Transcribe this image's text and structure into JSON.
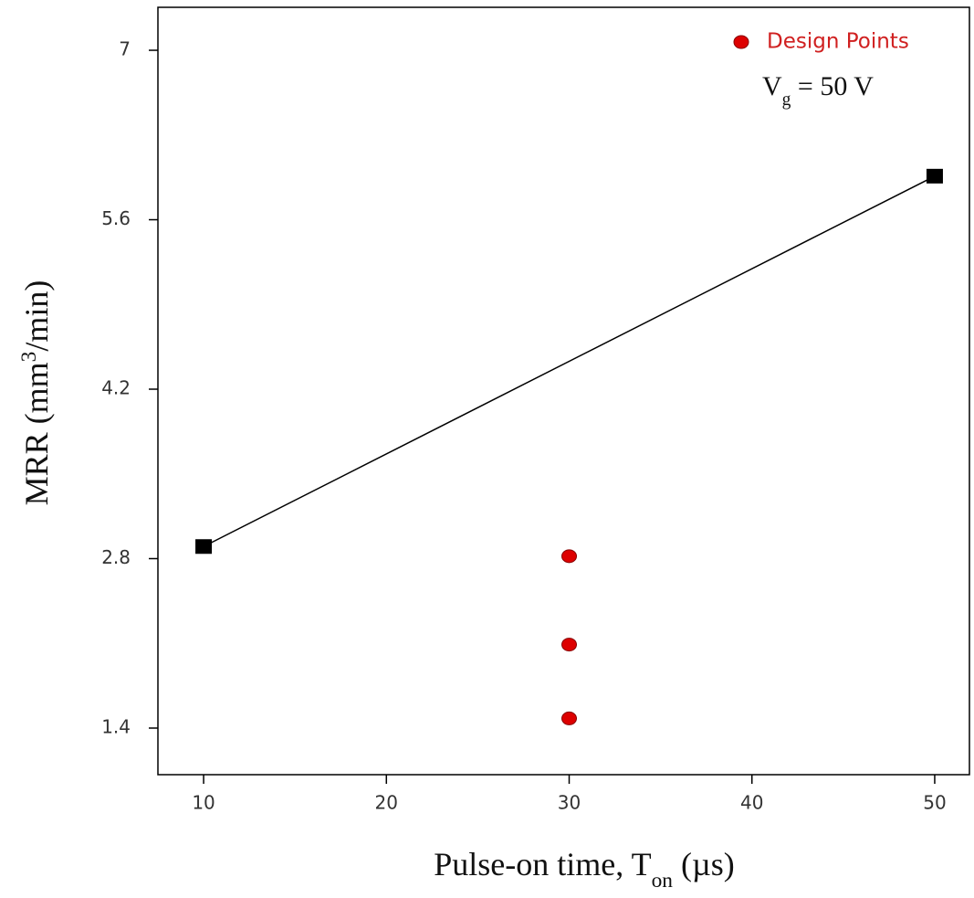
{
  "chart_data": {
    "type": "line",
    "x_label": [
      "Pulse-on time, T",
      "on",
      " (µs)"
    ],
    "y_label": [
      "MRR (mm",
      "3",
      "/min)"
    ],
    "annotation": [
      "V",
      "g",
      " = 50 V"
    ],
    "series": [
      {
        "x": [
          10,
          50
        ],
        "values": [
          2.9,
          5.96
        ],
        "color": "#000000",
        "marker": "square",
        "line": true
      },
      {
        "name": "Design Points",
        "x": [
          30,
          30,
          30
        ],
        "values": [
          2.82,
          2.09,
          1.48
        ],
        "color": "#dd0000",
        "marker": "circle",
        "line": false
      }
    ],
    "xlim": [
      7.5,
      51.9
    ],
    "xticks": [
      10,
      20,
      30,
      40,
      50
    ],
    "ylim": [
      1.015,
      7.355
    ],
    "yticks": [
      1.4,
      2.8,
      4.2,
      5.6,
      7
    ],
    "grid": false,
    "legend": "top-right"
  }
}
